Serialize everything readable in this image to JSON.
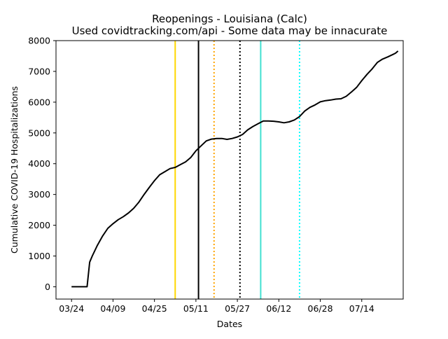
{
  "chart_data": {
    "type": "line",
    "title": "Reopenings - Louisiana (Calc)",
    "subtitle": "Used covidtracking.com/api - Some data may be innacurate",
    "xlabel": "Dates",
    "ylabel": "Cumulative COVID-19 Hospitalizations",
    "ylim": [
      -400,
      8000
    ],
    "xlim": [
      "2020-03-18",
      "2020-07-30"
    ],
    "grid": false,
    "xticks": [
      {
        "date": "2020-03-24",
        "label": "03/24"
      },
      {
        "date": "2020-04-09",
        "label": "04/09"
      },
      {
        "date": "2020-04-25",
        "label": "04/25"
      },
      {
        "date": "2020-05-11",
        "label": "05/11"
      },
      {
        "date": "2020-05-27",
        "label": "05/27"
      },
      {
        "date": "2020-06-12",
        "label": "06/12"
      },
      {
        "date": "2020-06-28",
        "label": "06/28"
      },
      {
        "date": "2020-07-14",
        "label": "07/14"
      }
    ],
    "yticks": [
      0,
      1000,
      2000,
      3000,
      4000,
      5000,
      6000,
      7000,
      8000
    ],
    "series": [
      {
        "color": "#000000",
        "points": [
          [
            "2020-03-24",
            0
          ],
          [
            "2020-03-30",
            0
          ],
          [
            "2020-03-31",
            800
          ],
          [
            "2020-04-01",
            1000
          ],
          [
            "2020-04-03",
            1350
          ],
          [
            "2020-04-05",
            1650
          ],
          [
            "2020-04-07",
            1900
          ],
          [
            "2020-04-09",
            2050
          ],
          [
            "2020-04-11",
            2180
          ],
          [
            "2020-04-13",
            2280
          ],
          [
            "2020-04-15",
            2400
          ],
          [
            "2020-04-17",
            2550
          ],
          [
            "2020-04-19",
            2750
          ],
          [
            "2020-04-21",
            3000
          ],
          [
            "2020-04-23",
            3230
          ],
          [
            "2020-04-25",
            3450
          ],
          [
            "2020-04-27",
            3640
          ],
          [
            "2020-04-29",
            3740
          ],
          [
            "2020-05-01",
            3840
          ],
          [
            "2020-05-03",
            3880
          ],
          [
            "2020-05-05",
            3970
          ],
          [
            "2020-05-07",
            4060
          ],
          [
            "2020-05-09",
            4200
          ],
          [
            "2020-05-11",
            4420
          ],
          [
            "2020-05-13",
            4580
          ],
          [
            "2020-05-15",
            4740
          ],
          [
            "2020-05-17",
            4800
          ],
          [
            "2020-05-19",
            4820
          ],
          [
            "2020-05-21",
            4820
          ],
          [
            "2020-05-23",
            4790
          ],
          [
            "2020-05-25",
            4820
          ],
          [
            "2020-05-27",
            4870
          ],
          [
            "2020-05-29",
            4950
          ],
          [
            "2020-05-31",
            5100
          ],
          [
            "2020-06-02",
            5210
          ],
          [
            "2020-06-04",
            5300
          ],
          [
            "2020-06-06",
            5390
          ],
          [
            "2020-06-08",
            5390
          ],
          [
            "2020-06-10",
            5380
          ],
          [
            "2020-06-12",
            5360
          ],
          [
            "2020-06-14",
            5330
          ],
          [
            "2020-06-16",
            5360
          ],
          [
            "2020-06-18",
            5420
          ],
          [
            "2020-06-20",
            5530
          ],
          [
            "2020-06-22",
            5710
          ],
          [
            "2020-06-24",
            5830
          ],
          [
            "2020-06-26",
            5910
          ],
          [
            "2020-06-28",
            6010
          ],
          [
            "2020-06-30",
            6050
          ],
          [
            "2020-07-02",
            6070
          ],
          [
            "2020-07-04",
            6100
          ],
          [
            "2020-07-06",
            6110
          ],
          [
            "2020-07-08",
            6190
          ],
          [
            "2020-07-10",
            6330
          ],
          [
            "2020-07-12",
            6480
          ],
          [
            "2020-07-14",
            6700
          ],
          [
            "2020-07-16",
            6900
          ],
          [
            "2020-07-18",
            7080
          ],
          [
            "2020-07-20",
            7290
          ],
          [
            "2020-07-22",
            7400
          ],
          [
            "2020-07-24",
            7470
          ],
          [
            "2020-07-26",
            7550
          ],
          [
            "2020-07-27",
            7590
          ],
          [
            "2020-07-28",
            7660
          ]
        ]
      }
    ],
    "vlines": [
      {
        "date": "2020-05-03",
        "color": "#ffd700",
        "style": "solid"
      },
      {
        "date": "2020-05-12",
        "color": "#000000",
        "style": "solid"
      },
      {
        "date": "2020-05-18",
        "color": "#ffa500",
        "style": "dotted"
      },
      {
        "date": "2020-05-28",
        "color": "#000000",
        "style": "dotted"
      },
      {
        "date": "2020-06-05",
        "color": "#40e0d0",
        "style": "solid"
      },
      {
        "date": "2020-06-20",
        "color": "#00ffff",
        "style": "dotted"
      }
    ]
  }
}
